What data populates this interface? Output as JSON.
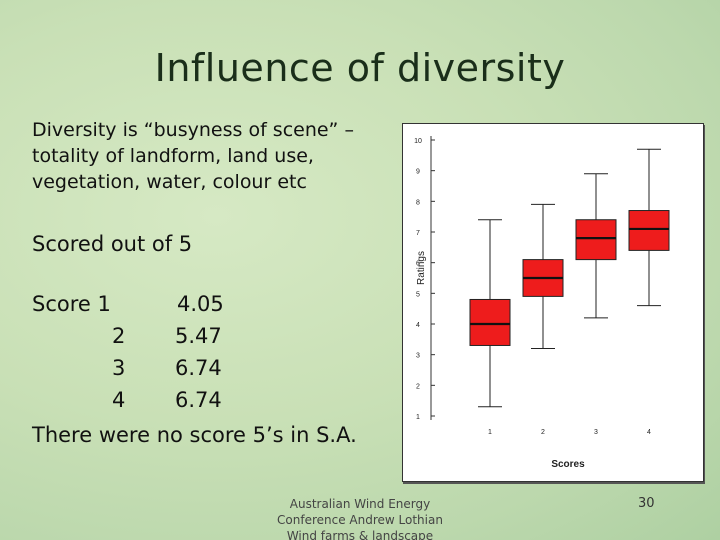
{
  "slide": {
    "title": "Influence of diversity",
    "definition_lines": [
      "Diversity is “busyness of scene” –",
      "totality of landform, land use,",
      "vegetation, water, colour etc"
    ],
    "scored_text": "Scored out of 5",
    "scores": [
      {
        "label": "Score 1",
        "value": "4.05"
      },
      {
        "label": "2",
        "value": "5.47"
      },
      {
        "label": "3",
        "value": "6.74"
      },
      {
        "label": "4",
        "value": "6.74"
      }
    ],
    "note": "There were no score 5’s in S.A.",
    "footer_lines": [
      "Australian Wind Energy",
      "Conference Andrew Lothian",
      "Wind farms & landscape"
    ],
    "page_number": "30"
  },
  "chart_data": {
    "type": "boxplot",
    "xlabel": "Scores",
    "ylabel": "Ratings",
    "categories": [
      "1",
      "2",
      "3",
      "4"
    ],
    "ylim": [
      1,
      10
    ],
    "y_ticks": [
      "1",
      "2",
      "3",
      "4",
      "5",
      "6",
      "7",
      "8",
      "9",
      "10"
    ],
    "box_color": "#ee1c1c",
    "boxes": [
      {
        "category": "1",
        "min": 1.3,
        "q1": 3.3,
        "median": 4.0,
        "q3": 4.8,
        "max": 7.4
      },
      {
        "category": "2",
        "min": 3.2,
        "q1": 4.9,
        "median": 5.5,
        "q3": 6.1,
        "max": 7.9
      },
      {
        "category": "3",
        "min": 4.2,
        "q1": 6.1,
        "median": 6.8,
        "q3": 7.4,
        "max": 8.9
      },
      {
        "category": "4",
        "min": 4.6,
        "q1": 6.4,
        "median": 7.1,
        "q3": 7.7,
        "max": 9.7
      }
    ]
  }
}
